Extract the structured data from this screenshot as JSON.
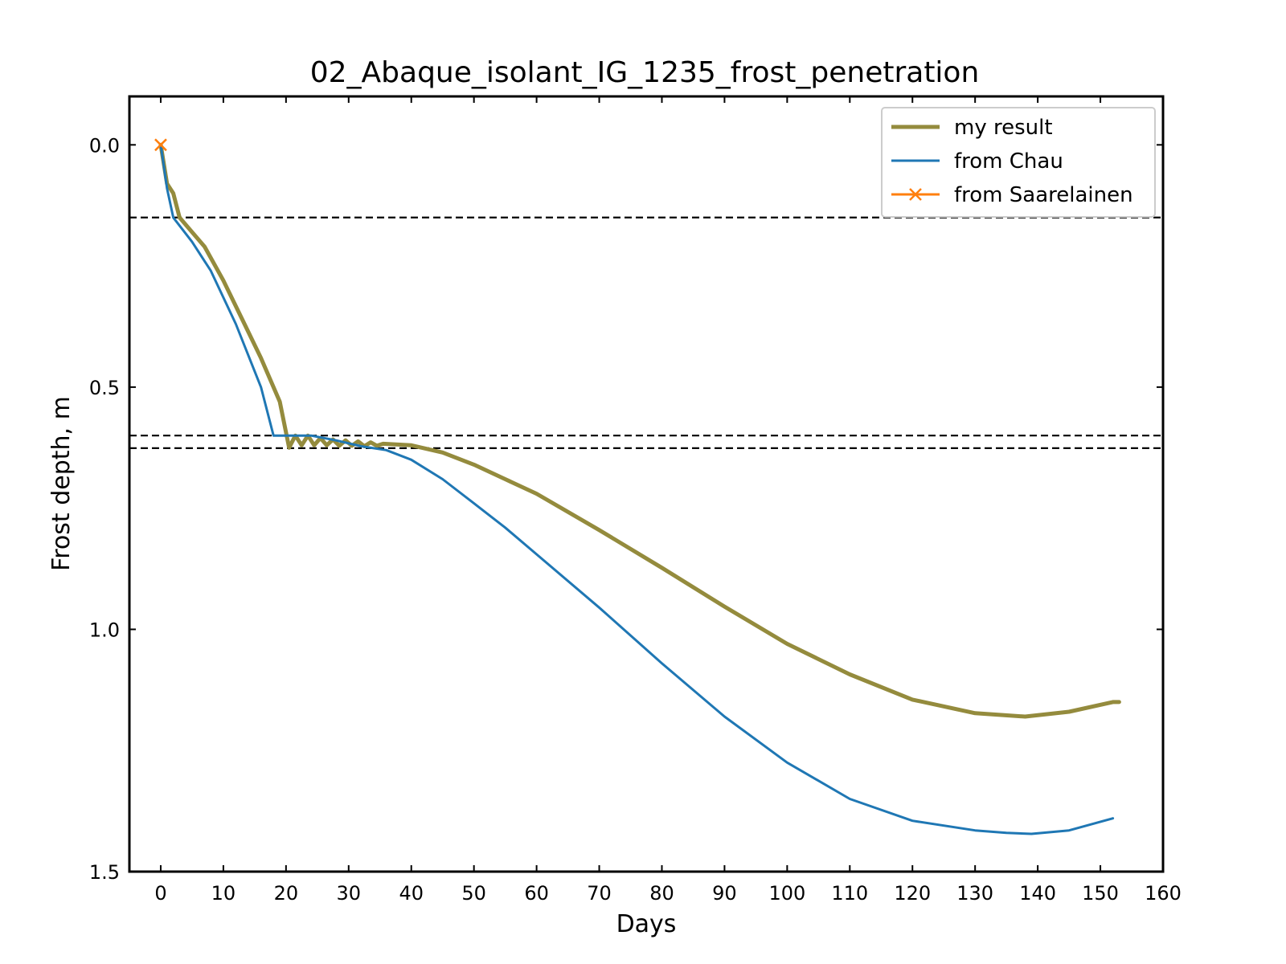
{
  "chart_data": {
    "type": "line",
    "title": "02_Abaque_isolant_IG_1235_frost_penetration",
    "xlabel": "Days",
    "ylabel": "Frost depth, m",
    "xlim": [
      -5,
      160
    ],
    "ylim": [
      -0.1,
      1.5
    ],
    "y_inverted": true,
    "xticks": [
      0,
      10,
      20,
      30,
      40,
      50,
      60,
      70,
      80,
      90,
      100,
      110,
      120,
      130,
      140,
      150,
      160
    ],
    "yticks": [
      0.0,
      0.5,
      1.0,
      1.5
    ],
    "ytick_labels": [
      "0.0",
      "0.5",
      "1.0",
      "1.5"
    ],
    "grid": false,
    "legend_position": "top-right",
    "reference_lines_y": [
      0.15,
      0.6,
      0.626
    ],
    "series": [
      {
        "name": "my result",
        "color": "#948b3d",
        "x": [
          0,
          1,
          2,
          3,
          5,
          7,
          10,
          13,
          16,
          19,
          20.5,
          21.5,
          22.5,
          23.5,
          24.5,
          25.5,
          26.5,
          27.5,
          28.5,
          29.5,
          30.5,
          31.5,
          32.5,
          33.5,
          34.5,
          35.5,
          40,
          45,
          50,
          55,
          60,
          70,
          80,
          90,
          100,
          110,
          120,
          130,
          138,
          145,
          152,
          153
        ],
        "y": [
          0,
          0.08,
          0.1,
          0.15,
          0.18,
          0.21,
          0.28,
          0.36,
          0.44,
          0.53,
          0.625,
          0.6,
          0.62,
          0.6,
          0.62,
          0.605,
          0.62,
          0.608,
          0.621,
          0.61,
          0.621,
          0.612,
          0.622,
          0.614,
          0.621,
          0.617,
          0.62,
          0.635,
          0.66,
          0.69,
          0.72,
          0.795,
          0.873,
          0.953,
          1.03,
          1.093,
          1.145,
          1.173,
          1.18,
          1.17,
          1.15,
          1.15
        ]
      },
      {
        "name": "from Chau",
        "color": "#1f77b4",
        "x": [
          0,
          1,
          2,
          5,
          8,
          12,
          16,
          18,
          20,
          24,
          28,
          32,
          36,
          40,
          45,
          50,
          55,
          60,
          70,
          80,
          90,
          100,
          110,
          120,
          130,
          135,
          139,
          145,
          152
        ],
        "y": [
          0,
          0.09,
          0.15,
          0.2,
          0.26,
          0.37,
          0.5,
          0.6,
          0.6,
          0.6,
          0.61,
          0.622,
          0.63,
          0.65,
          0.69,
          0.74,
          0.79,
          0.845,
          0.955,
          1.07,
          1.18,
          1.275,
          1.35,
          1.395,
          1.415,
          1.42,
          1.422,
          1.415,
          1.39
        ]
      },
      {
        "name": "from Saarelainen",
        "color": "#ff7f0e",
        "marker": "x",
        "x": [
          0
        ],
        "y": [
          0
        ]
      }
    ]
  }
}
